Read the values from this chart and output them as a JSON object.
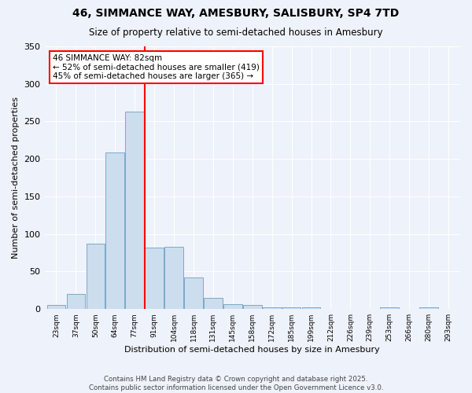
{
  "title1": "46, SIMMANCE WAY, AMESBURY, SALISBURY, SP4 7TD",
  "title2": "Size of property relative to semi-detached houses in Amesbury",
  "xlabel": "Distribution of semi-detached houses by size in Amesbury",
  "ylabel": "Number of semi-detached properties",
  "bar_color": "#ccdded",
  "bar_edge_color": "#7aaac8",
  "vline_x": 4.5,
  "vline_color": "red",
  "annotation_title": "46 SIMMANCE WAY: 82sqm",
  "annotation_line1": "← 52% of semi-detached houses are smaller (419)",
  "annotation_line2": "45% of semi-detached houses are larger (365) →",
  "annotation_box_color": "white",
  "annotation_box_edge_color": "red",
  "counts": [
    5,
    20,
    87,
    209,
    263,
    82,
    83,
    42,
    15,
    7,
    5,
    2,
    2,
    2,
    0,
    0,
    0,
    2,
    0,
    2,
    0
  ],
  "tick_labels": [
    "23sqm",
    "37sqm",
    "50sqm",
    "64sqm",
    "77sqm",
    "91sqm",
    "104sqm",
    "118sqm",
    "131sqm",
    "145sqm",
    "158sqm",
    "172sqm",
    "185sqm",
    "199sqm",
    "212sqm",
    "226sqm",
    "239sqm",
    "253sqm",
    "266sqm",
    "280sqm",
    "293sqm"
  ],
  "ylim": [
    0,
    350
  ],
  "yticks": [
    0,
    50,
    100,
    150,
    200,
    250,
    300,
    350
  ],
  "footer1": "Contains HM Land Registry data © Crown copyright and database right 2025.",
  "footer2": "Contains public sector information licensed under the Open Government Licence v3.0.",
  "bg_color": "#eef2fa"
}
